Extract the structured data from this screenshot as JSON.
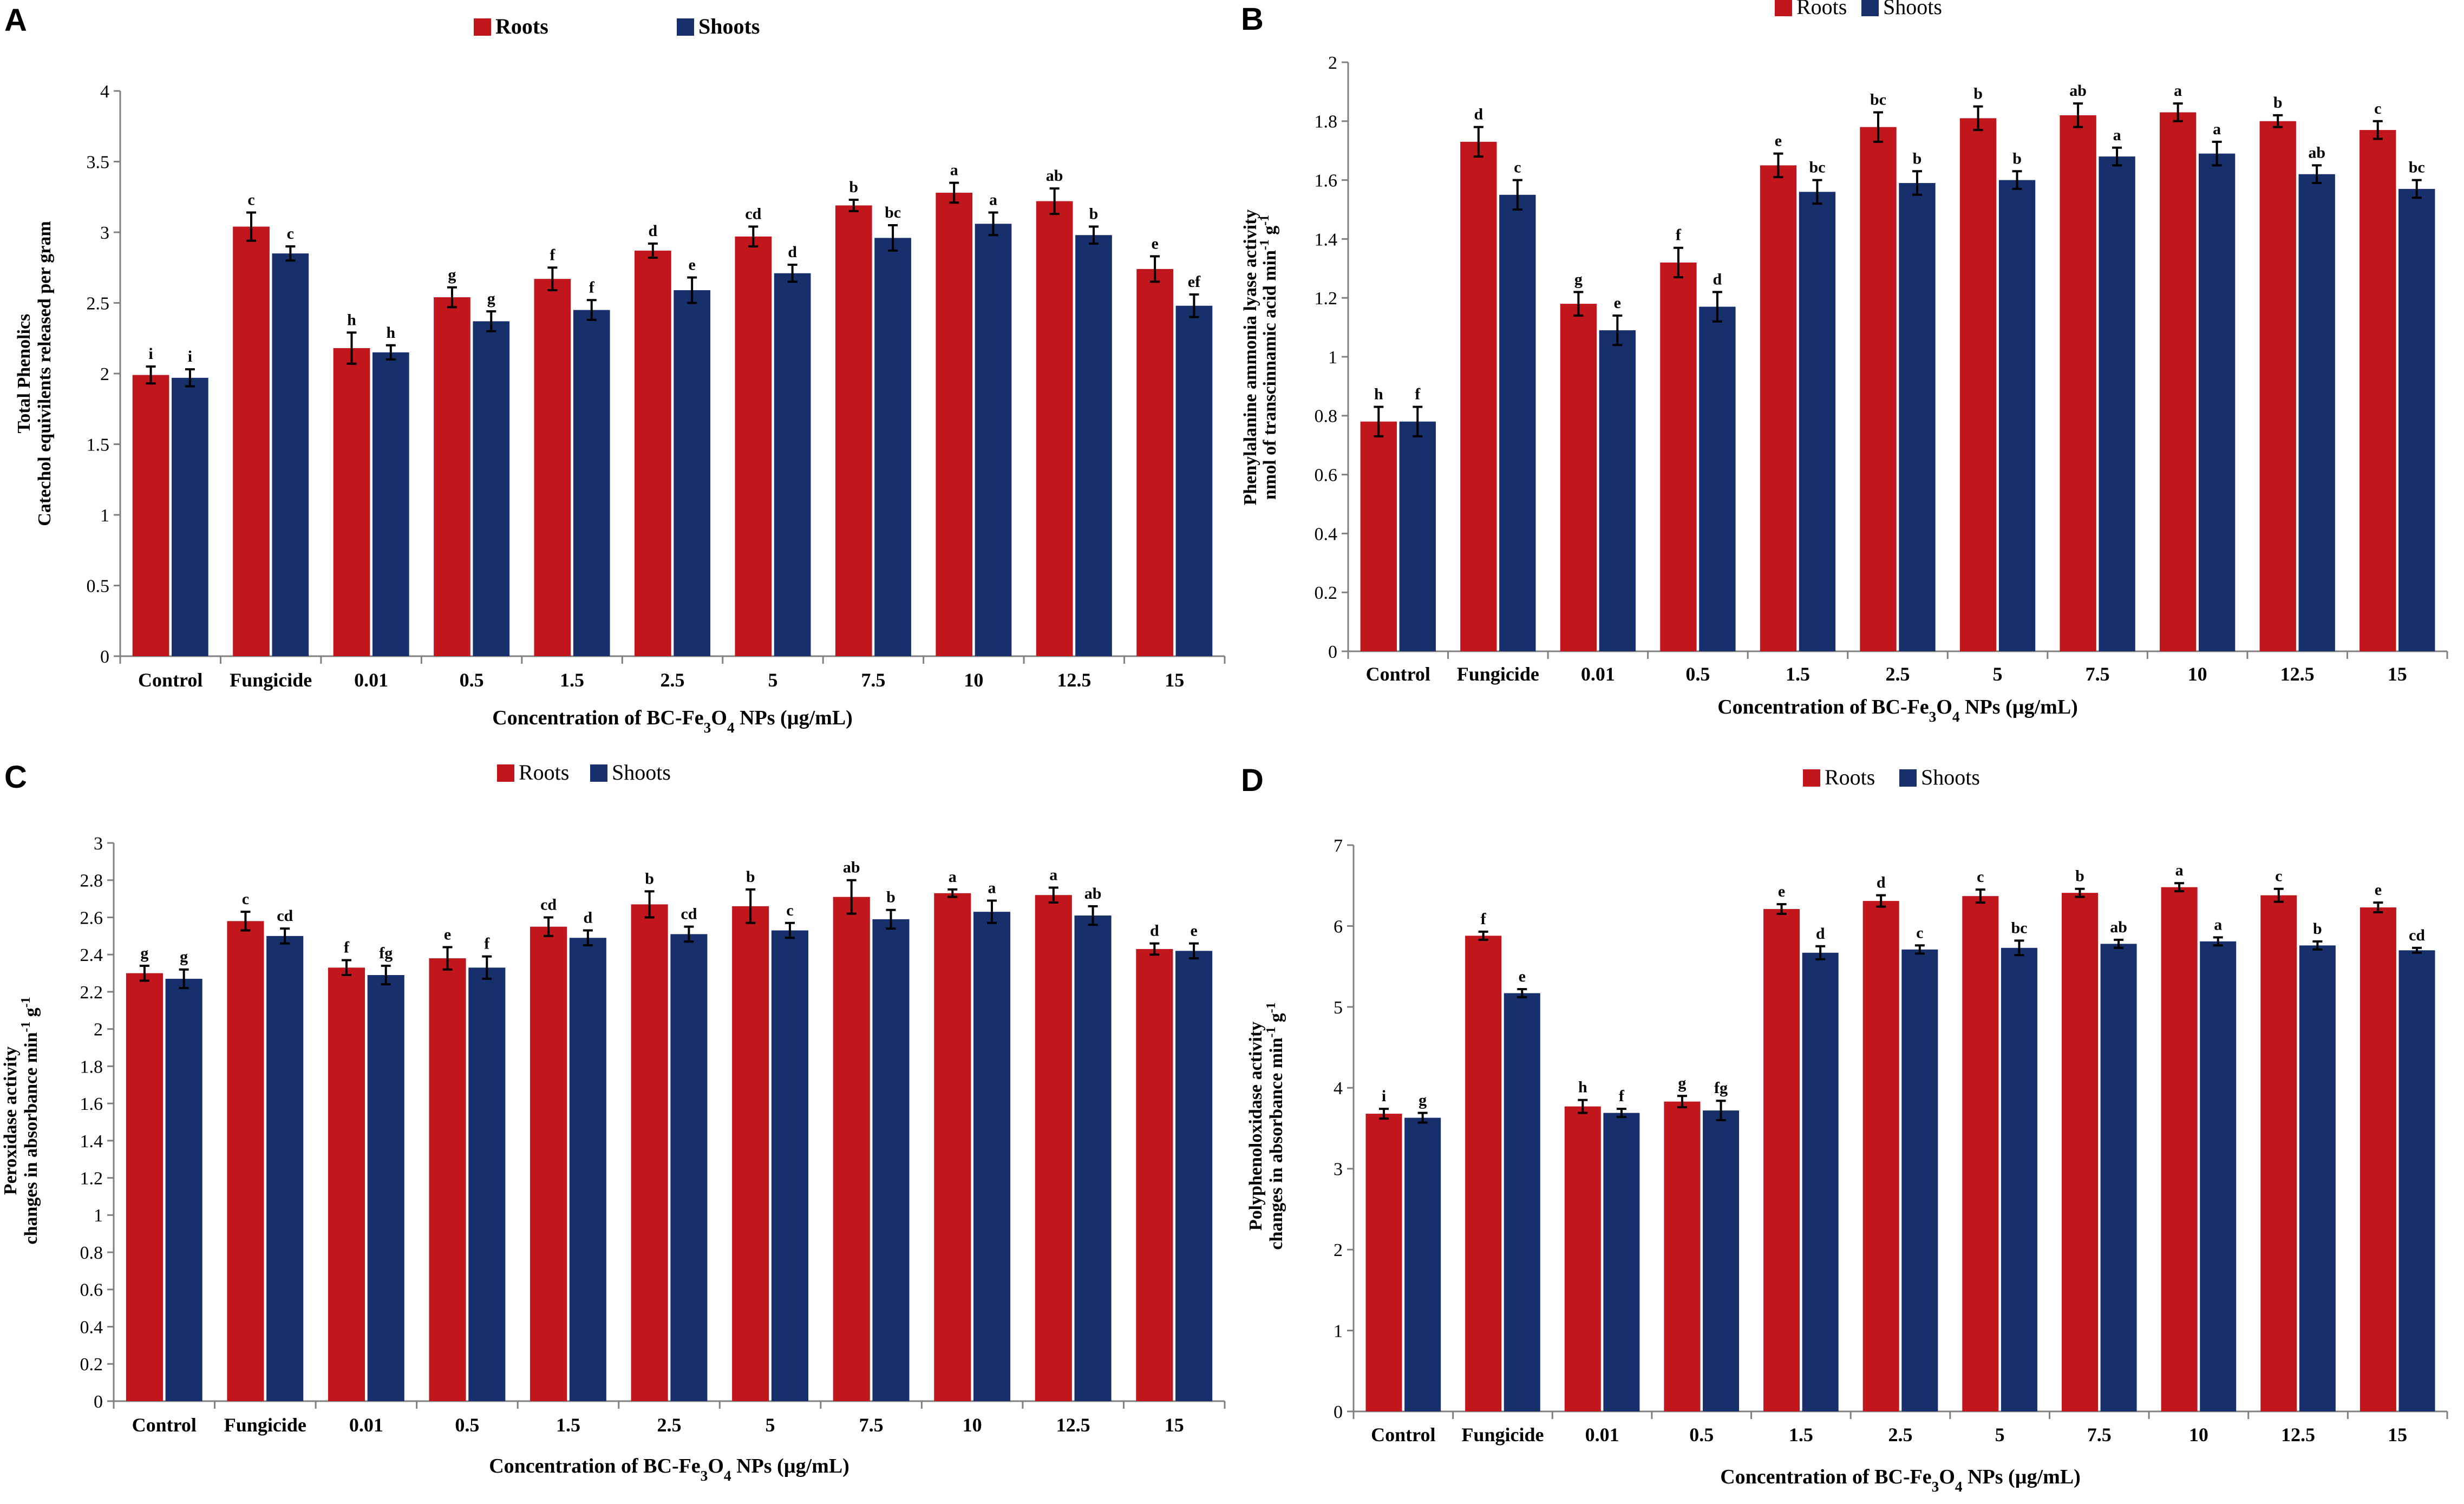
{
  "colors": {
    "roots": "#c0161c",
    "shoots": "#17306b",
    "axis": "#808080",
    "text": "#000000"
  },
  "legend": {
    "roots": "Roots",
    "shoots": "Shoots"
  },
  "categories": [
    "Control",
    "Fungicide",
    "0.01",
    "0.5",
    "1.5",
    "2.5",
    "5",
    "7.5",
    "10",
    "12.5",
    "15"
  ],
  "xlabel": {
    "main": "Concentration of BC-Fe",
    "sub3": "3",
    "o": "O",
    "sub4": "4",
    "tail": " NPs (µg/mL)"
  },
  "chart_data": [
    {
      "panel": "A",
      "type": "bar",
      "ylabel_lines": [
        "Total Phenolics",
        "Catechol equivilents released per gram"
      ],
      "ylim": [
        0,
        4
      ],
      "yticks": [
        0,
        0.5,
        1,
        1.5,
        2,
        2.5,
        3,
        3.5,
        4
      ],
      "series": [
        {
          "name": "Roots",
          "values": [
            1.99,
            3.04,
            2.18,
            2.54,
            2.67,
            2.87,
            2.97,
            3.19,
            3.28,
            3.22,
            2.74
          ],
          "errors": [
            0.06,
            0.1,
            0.11,
            0.07,
            0.08,
            0.05,
            0.07,
            0.04,
            0.07,
            0.09,
            0.09
          ],
          "letters": [
            "i",
            "c",
            "h",
            "g",
            "f",
            "d",
            "cd",
            "b",
            "a",
            "ab",
            "e"
          ]
        },
        {
          "name": "Shoots",
          "values": [
            1.97,
            2.85,
            2.15,
            2.37,
            2.45,
            2.59,
            2.71,
            2.96,
            3.06,
            2.98,
            2.48
          ],
          "errors": [
            0.06,
            0.05,
            0.05,
            0.07,
            0.07,
            0.09,
            0.06,
            0.09,
            0.08,
            0.06,
            0.08
          ],
          "letters": [
            "i",
            "c",
            "h",
            "g",
            "f",
            "e",
            "d",
            "bc",
            "a",
            "b",
            "ef"
          ]
        }
      ]
    },
    {
      "panel": "B",
      "type": "bar",
      "ylabel_lines": [
        "Phenylalanine ammonia lyase activity",
        "nmol of transcinnamic acid min-1 g-1"
      ],
      "ylim": [
        0,
        2
      ],
      "yticks": [
        0,
        0.2,
        0.4,
        0.6,
        0.8,
        1,
        1.2,
        1.4,
        1.6,
        1.8,
        2
      ],
      "series": [
        {
          "name": "Roots",
          "values": [
            0.78,
            1.73,
            1.18,
            1.32,
            1.65,
            1.78,
            1.81,
            1.82,
            1.83,
            1.8,
            1.77
          ],
          "errors": [
            0.05,
            0.05,
            0.04,
            0.05,
            0.04,
            0.05,
            0.04,
            0.04,
            0.03,
            0.02,
            0.03
          ],
          "letters": [
            "h",
            "d",
            "g",
            "f",
            "e",
            "bc",
            "b",
            "ab",
            "a",
            "b",
            "c"
          ]
        },
        {
          "name": "Shoots",
          "values": [
            0.78,
            1.55,
            1.09,
            1.17,
            1.56,
            1.59,
            1.6,
            1.68,
            1.69,
            1.62,
            1.57
          ],
          "errors": [
            0.05,
            0.05,
            0.05,
            0.05,
            0.04,
            0.04,
            0.03,
            0.03,
            0.04,
            0.03,
            0.03
          ],
          "letters": [
            "f",
            "c",
            "e",
            "d",
            "bc",
            "b",
            "b",
            "a",
            "a",
            "ab",
            "bc"
          ]
        }
      ]
    },
    {
      "panel": "C",
      "type": "bar",
      "ylabel_lines": [
        "Peroxidase activity",
        "changes in absorbance min-1 g-1"
      ],
      "ylim": [
        0,
        3
      ],
      "yticks": [
        0,
        0.2,
        0.4,
        0.6,
        0.8,
        1,
        1.2,
        1.4,
        1.6,
        1.8,
        2,
        2.2,
        2.4,
        2.6,
        2.8,
        3
      ],
      "series": [
        {
          "name": "Roots",
          "values": [
            2.3,
            2.58,
            2.33,
            2.38,
            2.55,
            2.67,
            2.66,
            2.71,
            2.73,
            2.72,
            2.43
          ],
          "errors": [
            0.04,
            0.05,
            0.04,
            0.06,
            0.05,
            0.07,
            0.09,
            0.09,
            0.02,
            0.04,
            0.03
          ],
          "letters": [
            "g",
            "c",
            "f",
            "e",
            "cd",
            "b",
            "b",
            "ab",
            "a",
            "a",
            "d"
          ]
        },
        {
          "name": "Shoots",
          "values": [
            2.27,
            2.5,
            2.29,
            2.33,
            2.49,
            2.51,
            2.53,
            2.59,
            2.63,
            2.61,
            2.42
          ],
          "errors": [
            0.05,
            0.04,
            0.05,
            0.06,
            0.04,
            0.04,
            0.04,
            0.05,
            0.06,
            0.05,
            0.04
          ],
          "letters": [
            "g",
            "cd",
            "fg",
            "f",
            "d",
            "cd",
            "c",
            "b",
            "a",
            "ab",
            "e"
          ]
        }
      ]
    },
    {
      "panel": "D",
      "type": "bar",
      "ylabel_lines": [
        "Polyphenoloxidase activity",
        "changes in absorbance min-1 g-1"
      ],
      "ylim": [
        0,
        7
      ],
      "yticks": [
        0,
        1,
        2,
        3,
        4,
        5,
        6,
        7
      ],
      "series": [
        {
          "name": "Roots",
          "values": [
            3.68,
            5.88,
            3.77,
            3.83,
            6.21,
            6.31,
            6.37,
            6.41,
            6.48,
            6.38,
            6.23
          ],
          "errors": [
            0.06,
            0.05,
            0.08,
            0.07,
            0.06,
            0.07,
            0.08,
            0.05,
            0.05,
            0.08,
            0.06
          ],
          "letters": [
            "i",
            "f",
            "h",
            "g",
            "e",
            "d",
            "c",
            "b",
            "a",
            "c",
            "e"
          ]
        },
        {
          "name": "Shoots",
          "values": [
            3.63,
            5.17,
            3.69,
            3.72,
            5.67,
            5.71,
            5.73,
            5.78,
            5.81,
            5.76,
            5.7
          ],
          "errors": [
            0.06,
            0.05,
            0.05,
            0.12,
            0.08,
            0.05,
            0.09,
            0.05,
            0.05,
            0.05,
            0.03
          ],
          "letters": [
            "g",
            "e",
            "f",
            "fg",
            "d",
            "c",
            "bc",
            "ab",
            "a",
            "b",
            "cd"
          ]
        }
      ]
    }
  ]
}
